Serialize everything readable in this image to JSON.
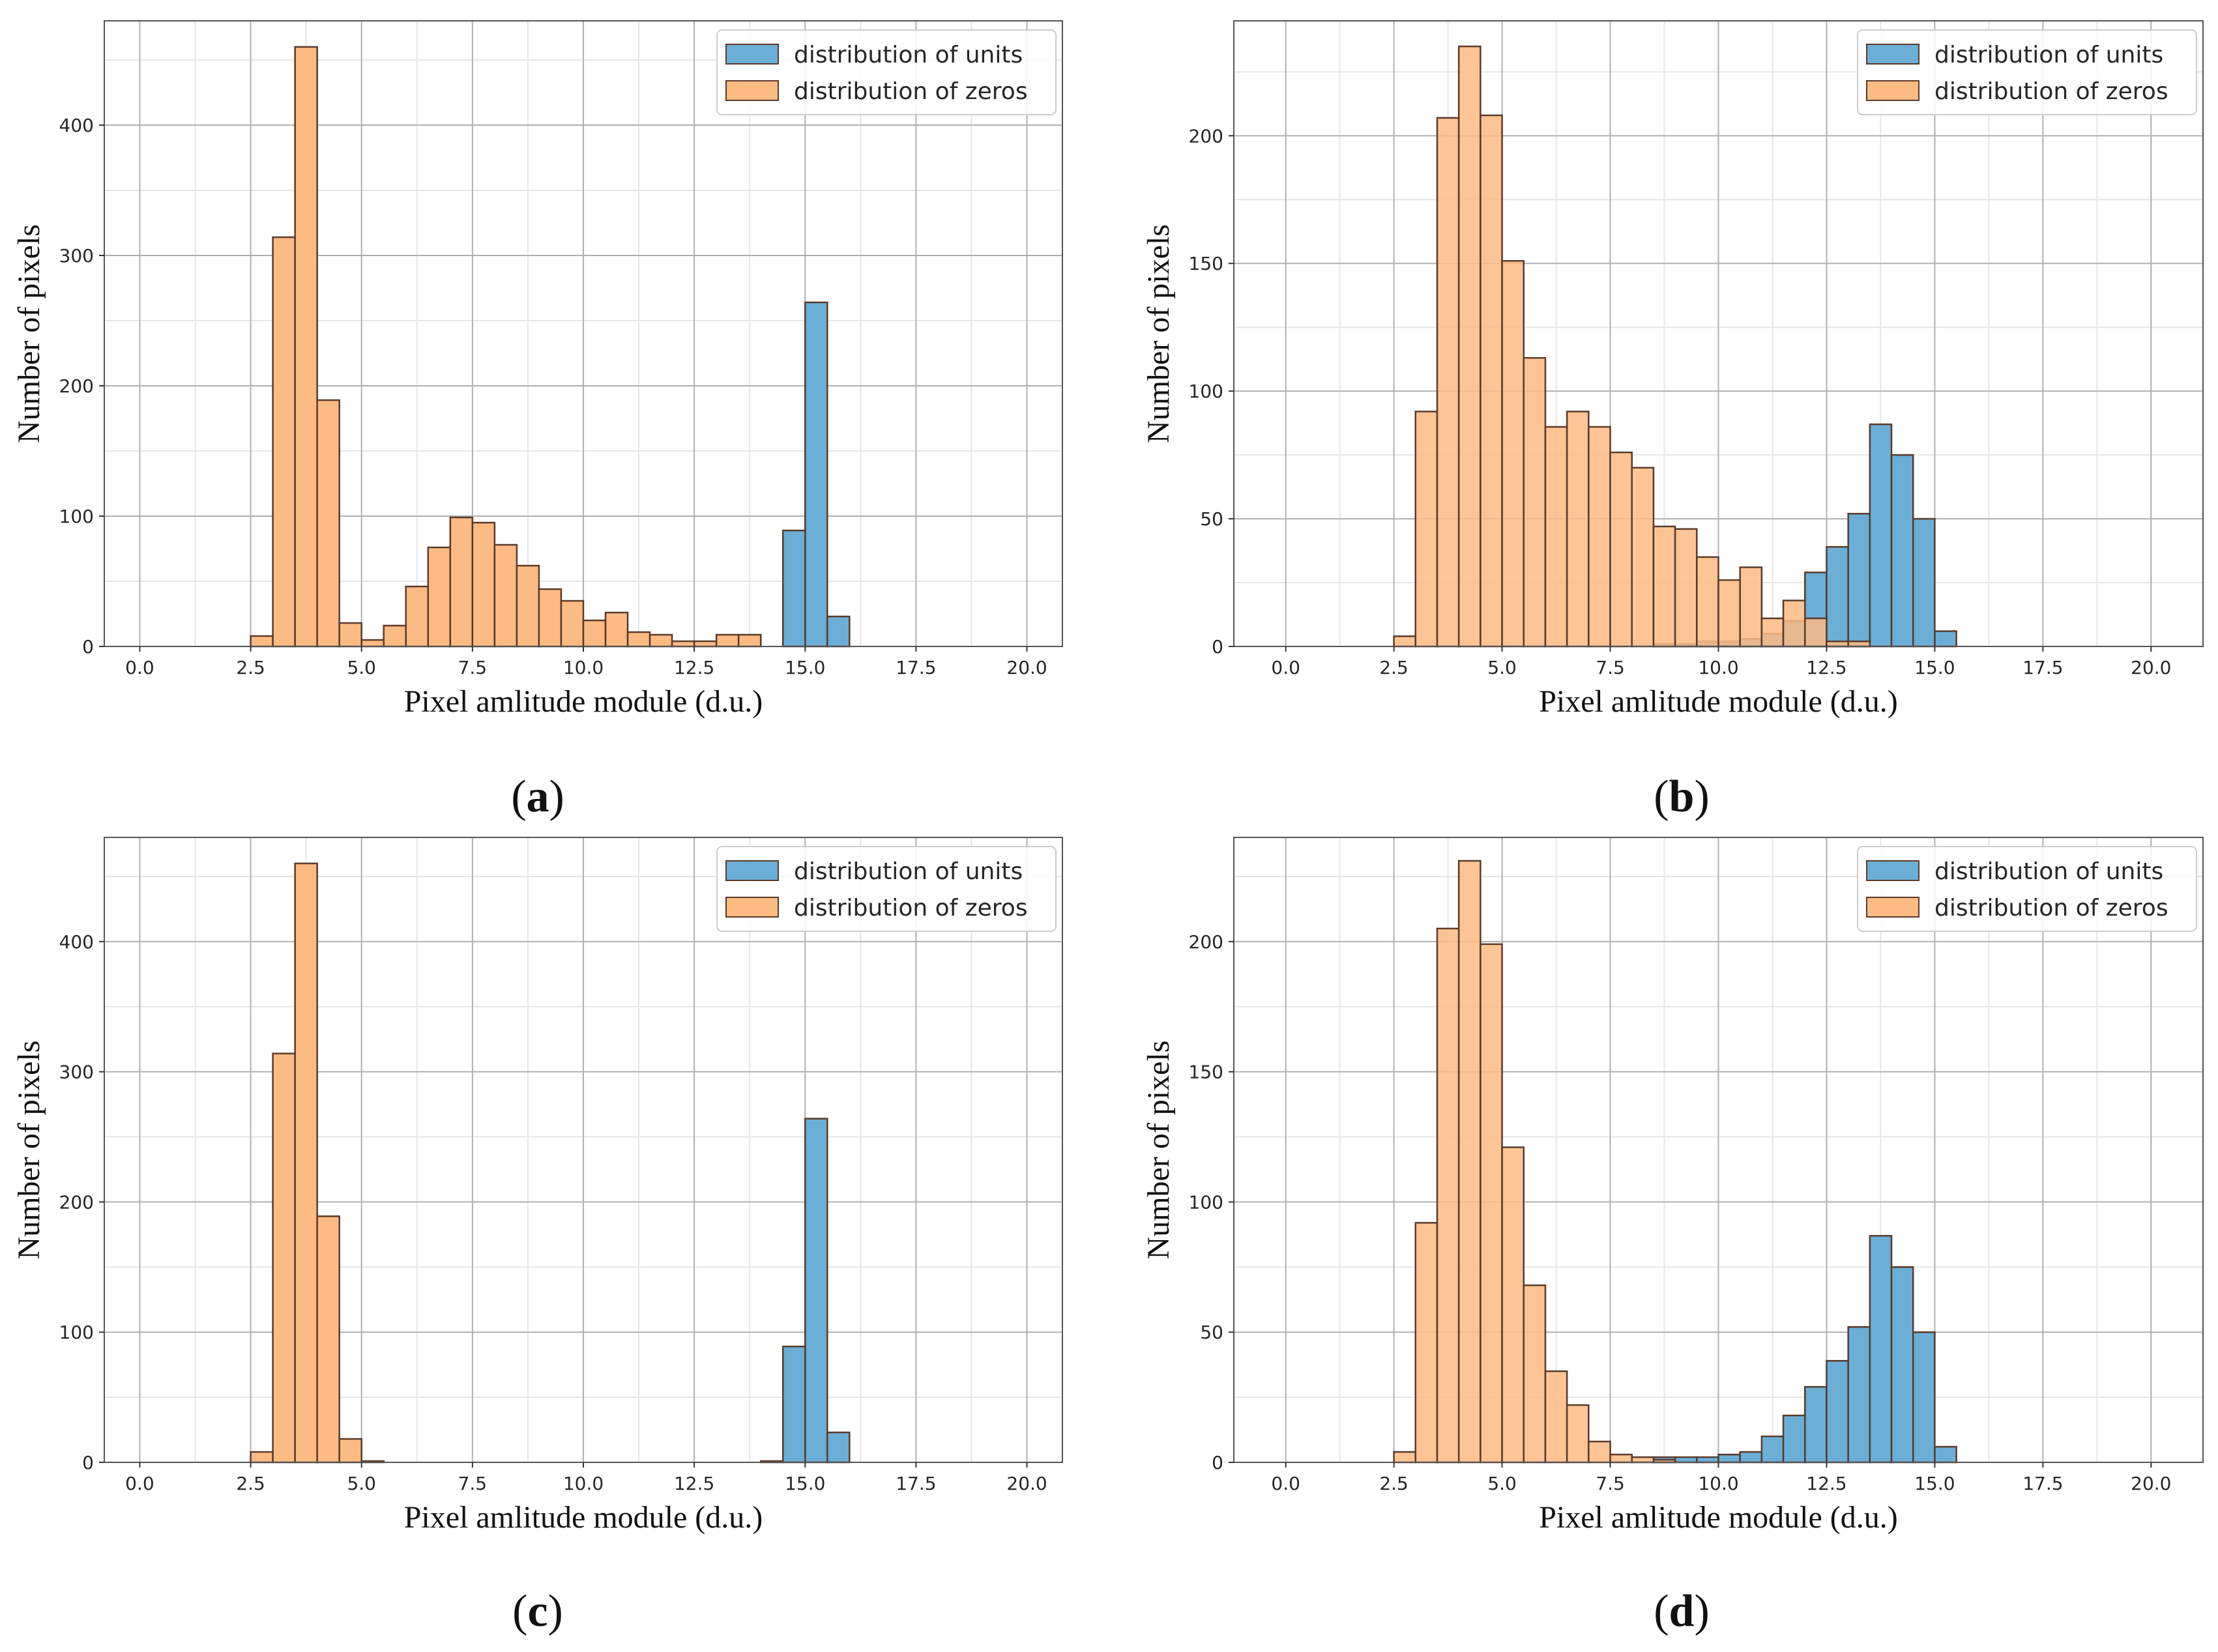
{
  "colors": {
    "units": "#6baed6",
    "zeros": "#fdbb84",
    "edge": "#5a3a2a",
    "grid_major": "#b0b0b0",
    "grid_minor": "#e6e6e6",
    "frame": "#555555"
  },
  "chart_data": [
    {
      "type": "bar",
      "panel_label": "a",
      "xlabel": "Pixel amlitude module (d.u.)",
      "ylabel": "Number of pixels",
      "xlim": [
        -0.8,
        20.8
      ],
      "ylim": [
        0,
        480
      ],
      "xticks": [
        0.0,
        2.5,
        5.0,
        7.5,
        10.0,
        12.5,
        15.0,
        17.5,
        20.0
      ],
      "xtick_labels": [
        "0.0",
        "2.5",
        "5.0",
        "7.5",
        "10.0",
        "12.5",
        "15.0",
        "17.5",
        "20.0"
      ],
      "yticks": [
        0,
        100,
        200,
        300,
        400
      ],
      "ytick_labels": [
        "0",
        "100",
        "200",
        "300",
        "400"
      ],
      "legend": {
        "position": "top-right",
        "entries": [
          "distribution of units",
          "distribution of zeros"
        ]
      },
      "bin_width": 0.5,
      "series": [
        {
          "name": "distribution of zeros",
          "bin_starts": [
            2.5,
            3.0,
            3.5,
            4.0,
            4.5,
            5.0,
            5.5,
            6.0,
            6.5,
            7.0,
            7.5,
            8.0,
            8.5,
            9.0,
            9.5,
            10.0,
            10.5,
            11.0,
            11.5,
            12.0,
            12.5,
            13.0,
            13.5
          ],
          "values": [
            8,
            314,
            460,
            189,
            18,
            5,
            16,
            46,
            76,
            99,
            95,
            78,
            62,
            44,
            35,
            20,
            26,
            11,
            9,
            4,
            4,
            9,
            9
          ]
        },
        {
          "name": "distribution of units",
          "bin_starts": [
            14.5,
            15.0,
            15.5
          ],
          "values": [
            89,
            264,
            23
          ]
        }
      ]
    },
    {
      "type": "bar",
      "panel_label": "b",
      "xlabel": "Pixel amlitude module (d.u.)",
      "ylabel": "Number of pixels",
      "xlim": [
        -1.2,
        21.2
      ],
      "ylim": [
        0,
        245
      ],
      "xticks": [
        0.0,
        2.5,
        5.0,
        7.5,
        10.0,
        12.5,
        15.0,
        17.5,
        20.0
      ],
      "xtick_labels": [
        "0.0",
        "2.5",
        "5.0",
        "7.5",
        "10.0",
        "12.5",
        "15.0",
        "17.5",
        "20.0"
      ],
      "yticks": [
        0,
        50,
        100,
        150,
        200
      ],
      "ytick_labels": [
        "0",
        "50",
        "100",
        "150",
        "200"
      ],
      "legend": {
        "position": "top-right",
        "entries": [
          "distribution of units",
          "distribution of zeros"
        ]
      },
      "bin_width": 0.5,
      "series": [
        {
          "name": "distribution of units",
          "bin_starts": [
            8.5,
            9.0,
            9.5,
            10.0,
            10.5,
            11.0,
            11.5,
            12.0,
            12.5,
            13.0,
            13.5,
            14.0,
            14.5,
            15.0
          ],
          "values": [
            1,
            1,
            2,
            2,
            3,
            5,
            10,
            29,
            39,
            52,
            87,
            75,
            50,
            6
          ]
        },
        {
          "name": "distribution of zeros",
          "bin_starts": [
            2.5,
            3.0,
            3.5,
            4.0,
            4.5,
            5.0,
            5.5,
            6.0,
            6.5,
            7.0,
            7.5,
            8.0,
            8.5,
            9.0,
            9.5,
            10.0,
            10.5,
            11.0,
            11.5,
            12.0,
            12.5,
            13.0
          ],
          "values": [
            4,
            92,
            207,
            235,
            208,
            151,
            113,
            86,
            92,
            86,
            76,
            70,
            47,
            46,
            35,
            26,
            31,
            11,
            18,
            11,
            2,
            2
          ]
        }
      ]
    },
    {
      "type": "bar",
      "panel_label": "c",
      "xlabel": "Pixel amlitude module (d.u.)",
      "ylabel": "Number of pixels",
      "xlim": [
        -0.8,
        20.8
      ],
      "ylim": [
        0,
        480
      ],
      "xticks": [
        0.0,
        2.5,
        5.0,
        7.5,
        10.0,
        12.5,
        15.0,
        17.5,
        20.0
      ],
      "xtick_labels": [
        "0.0",
        "2.5",
        "5.0",
        "7.5",
        "10.0",
        "12.5",
        "15.0",
        "17.5",
        "20.0"
      ],
      "yticks": [
        0,
        100,
        200,
        300,
        400
      ],
      "ytick_labels": [
        "0",
        "100",
        "200",
        "300",
        "400"
      ],
      "legend": {
        "position": "top-right",
        "entries": [
          "distribution of units",
          "distribution of zeros"
        ]
      },
      "bin_width": 0.5,
      "series": [
        {
          "name": "distribution of zeros",
          "bin_starts": [
            2.5,
            3.0,
            3.5,
            4.0,
            4.5,
            5.0
          ],
          "values": [
            8,
            314,
            460,
            189,
            18,
            1
          ]
        },
        {
          "name": "distribution of units",
          "bin_starts": [
            14.0,
            14.5,
            15.0,
            15.5
          ],
          "values": [
            1,
            89,
            264,
            23
          ]
        }
      ]
    },
    {
      "type": "bar",
      "panel_label": "d",
      "xlabel": "Pixel amlitude module (d.u.)",
      "ylabel": "Number of pixels",
      "xlim": [
        -1.2,
        21.2
      ],
      "ylim": [
        0,
        240
      ],
      "xticks": [
        0.0,
        2.5,
        5.0,
        7.5,
        10.0,
        12.5,
        15.0,
        17.5,
        20.0
      ],
      "xtick_labels": [
        "0.0",
        "2.5",
        "5.0",
        "7.5",
        "10.0",
        "12.5",
        "15.0",
        "17.5",
        "20.0"
      ],
      "yticks": [
        0,
        50,
        100,
        150,
        200
      ],
      "ytick_labels": [
        "0",
        "50",
        "100",
        "150",
        "200"
      ],
      "legend": {
        "position": "top-right",
        "entries": [
          "distribution of units",
          "distribution of zeros"
        ]
      },
      "bin_width": 0.5,
      "series": [
        {
          "name": "distribution of units",
          "bin_starts": [
            8.5,
            9.0,
            9.5,
            10.0,
            10.5,
            11.0,
            11.5,
            12.0,
            12.5,
            13.0,
            13.5,
            14.0,
            14.5,
            15.0
          ],
          "values": [
            2,
            2,
            2,
            3,
            4,
            10,
            18,
            29,
            39,
            52,
            87,
            75,
            50,
            6
          ]
        },
        {
          "name": "distribution of zeros",
          "bin_starts": [
            2.5,
            3.0,
            3.5,
            4.0,
            4.5,
            5.0,
            5.5,
            6.0,
            6.5,
            7.0,
            7.5,
            8.0,
            8.5
          ],
          "values": [
            4,
            92,
            205,
            231,
            199,
            121,
            68,
            35,
            22,
            8,
            3,
            2,
            1
          ]
        }
      ]
    }
  ]
}
